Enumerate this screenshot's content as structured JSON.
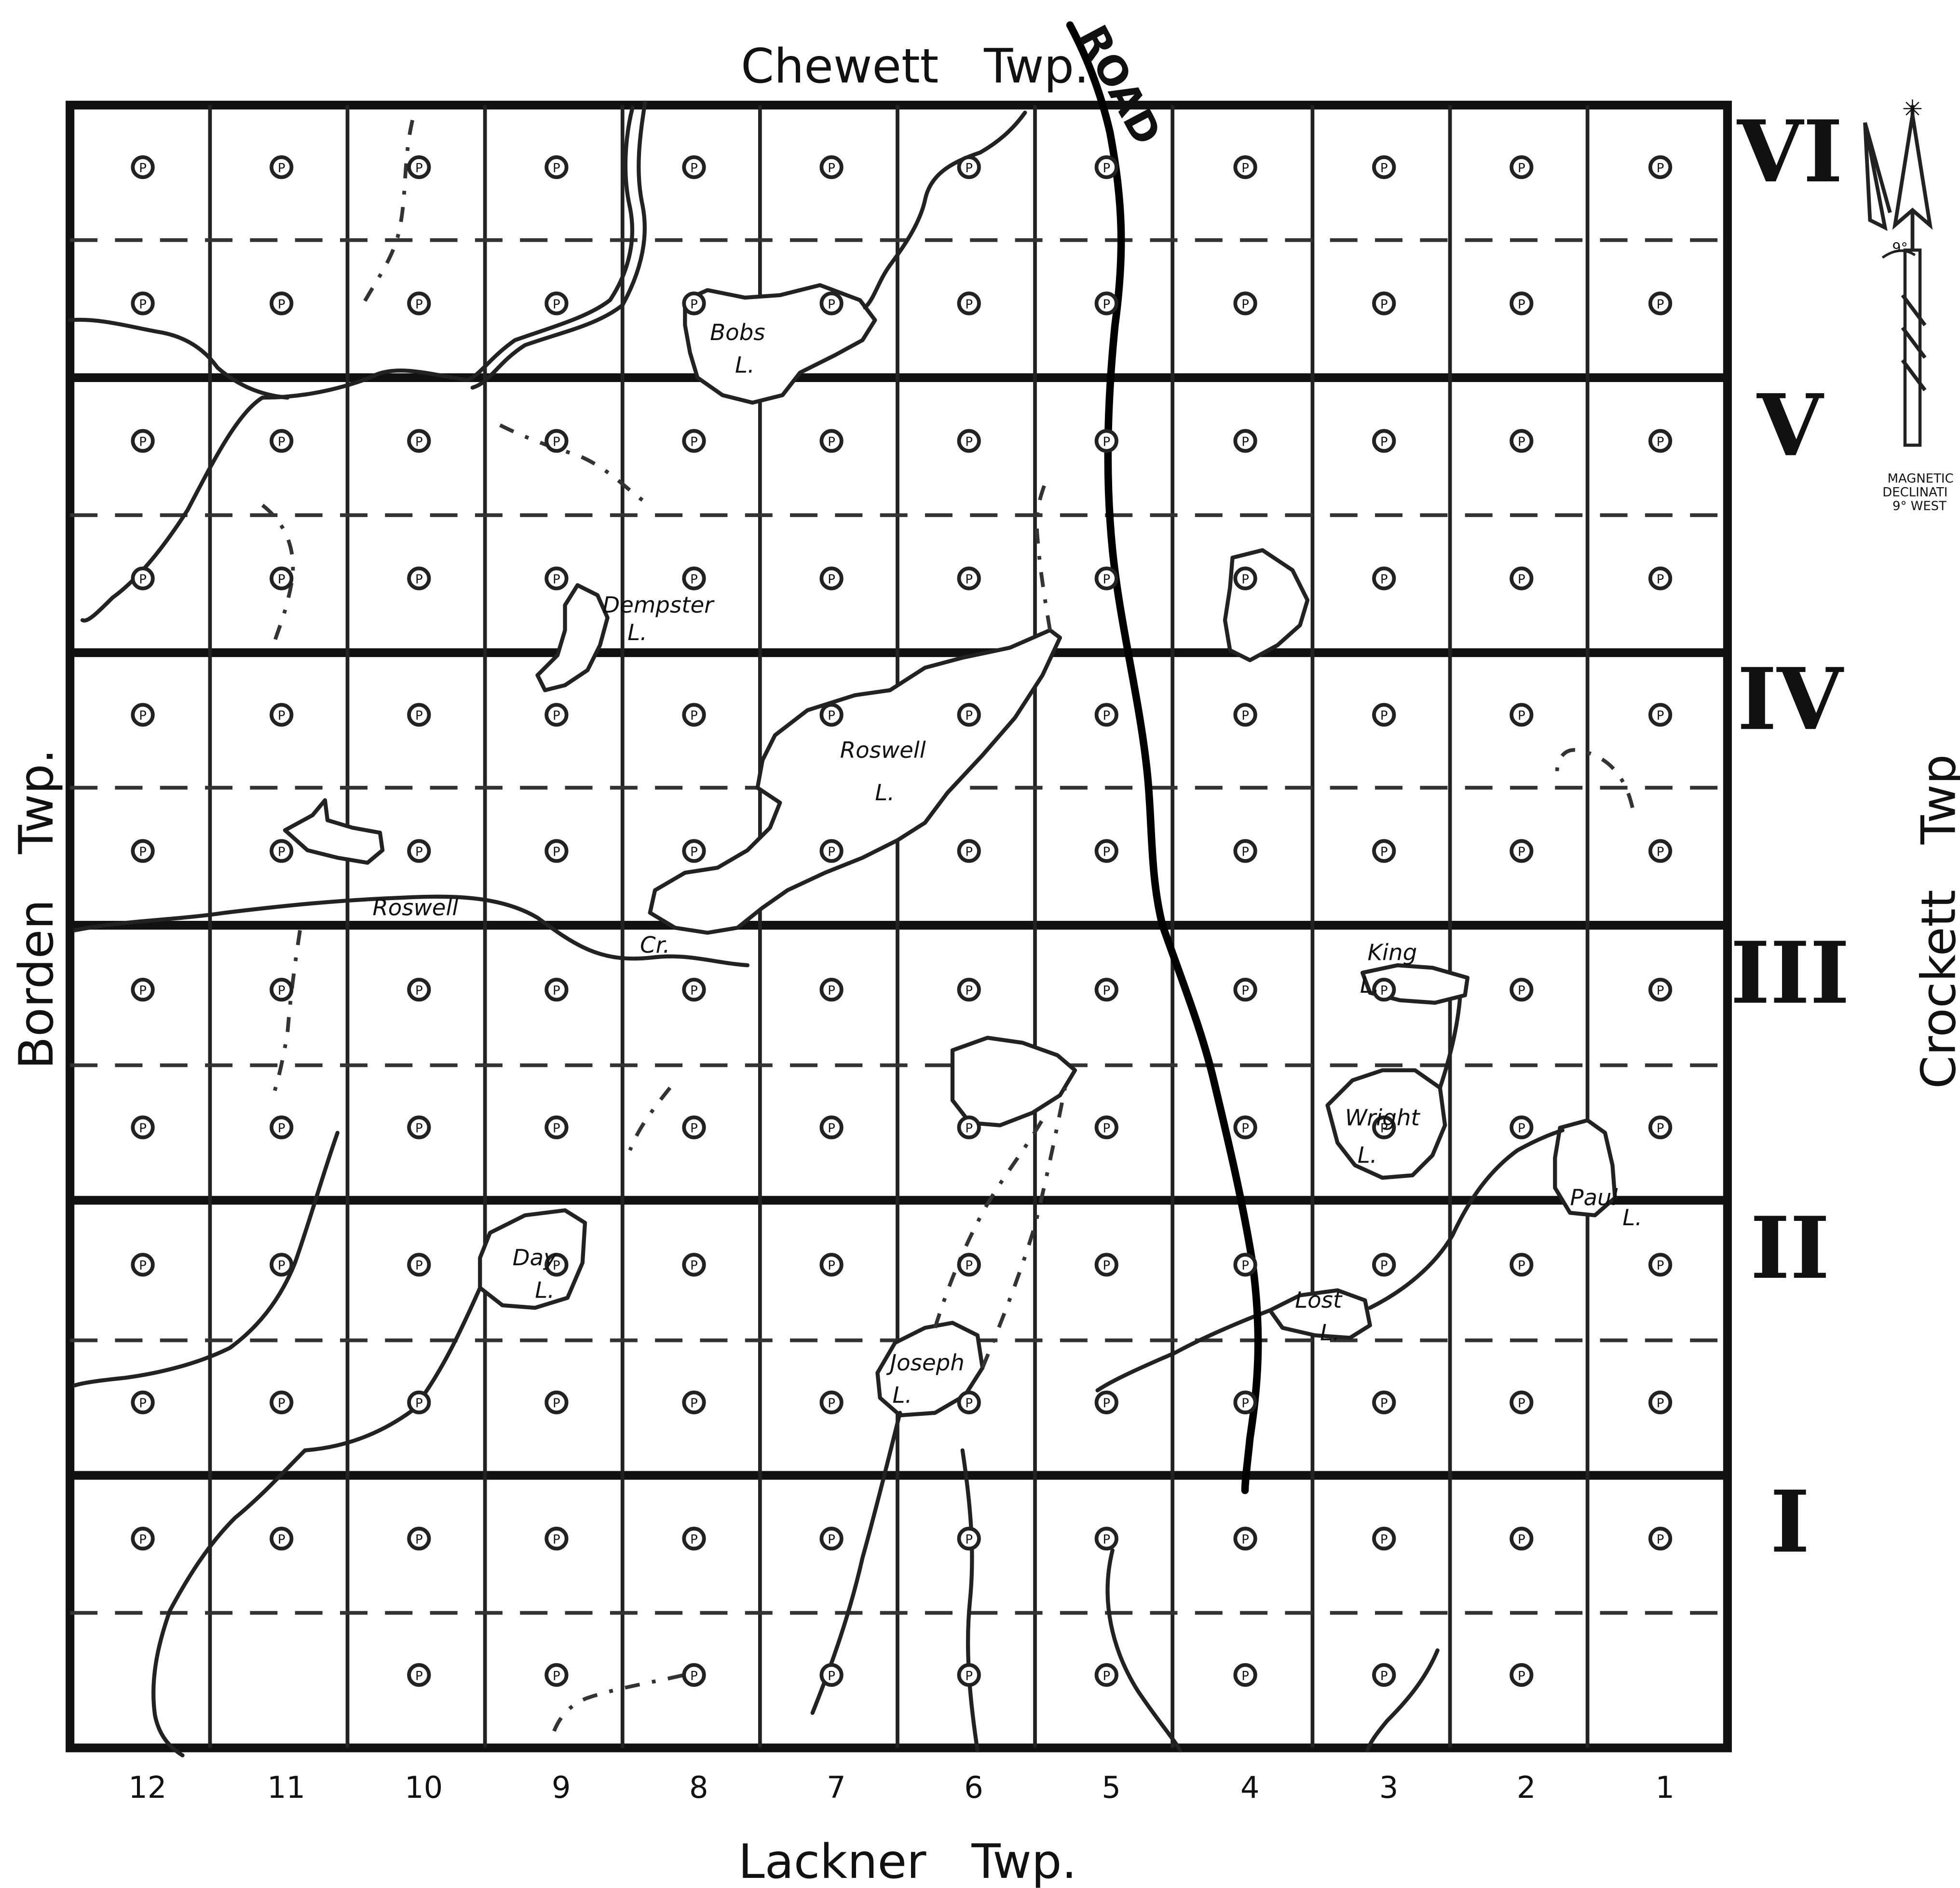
{
  "boundaries": {
    "north": "Chewett   Twp.",
    "south": "Lackner   Twp.",
    "west": "Borden   Twp.",
    "east": "Crockett   Twp"
  },
  "columns": [
    "12",
    "11",
    "10",
    "9",
    "8",
    "7",
    "6",
    "5",
    "4",
    "3",
    "2",
    "1"
  ],
  "concessions": [
    "VI",
    "V",
    "IV",
    "III",
    "II",
    "I"
  ],
  "road_label": "ROAD",
  "patent_symbol": "P",
  "water_labels": {
    "bobs": [
      "Bobs",
      "L."
    ],
    "dempster": [
      "Dempster",
      "L."
    ],
    "roswell_lake": [
      "Roswell",
      "L."
    ],
    "roswell_creek": [
      "Roswell",
      "Cr."
    ],
    "king": [
      "King",
      "L."
    ],
    "wright": [
      "Wright",
      "L."
    ],
    "paul": [
      "Paul",
      "L."
    ],
    "day": [
      "Day",
      "L."
    ],
    "lost": [
      "Lost",
      "L."
    ],
    "joseph": [
      "Joseph",
      "L."
    ]
  },
  "declination": {
    "angle": "9°",
    "lines": [
      "MAGNETIC",
      "DECLINATI",
      "9° WEST"
    ]
  },
  "patent_lots": [
    {
      "col": 12,
      "row": "VI-N"
    },
    {
      "col": 11,
      "row": "VI-N"
    },
    {
      "col": 10,
      "row": "VI-N"
    },
    {
      "col": 9,
      "row": "VI-N"
    },
    {
      "col": 8,
      "row": "VI-N"
    },
    {
      "col": 7,
      "row": "VI-N"
    },
    {
      "col": 6,
      "row": "VI-N"
    },
    {
      "col": 5,
      "row": "VI-N"
    },
    {
      "col": 4,
      "row": "VI-N"
    },
    {
      "col": 3,
      "row": "VI-N"
    },
    {
      "col": 2,
      "row": "VI-N"
    },
    {
      "col": 1,
      "row": "VI-N"
    }
  ]
}
